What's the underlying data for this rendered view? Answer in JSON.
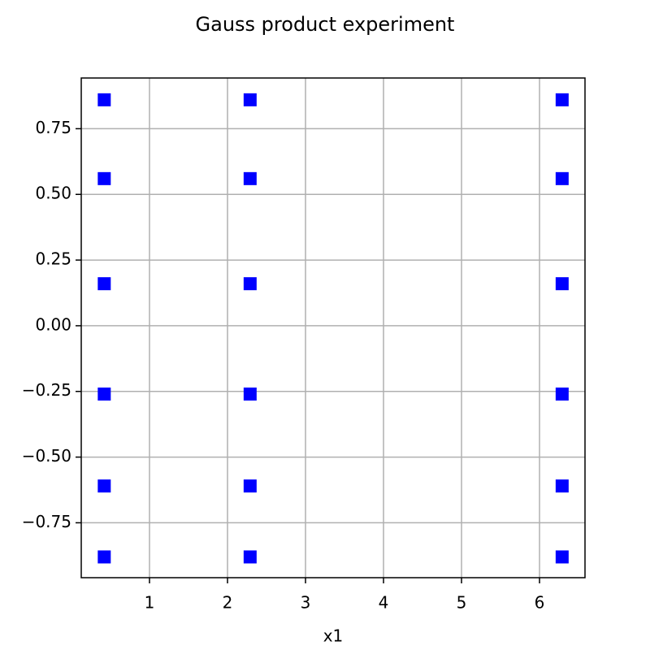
{
  "chart_data": {
    "type": "scatter",
    "title": "Gauss product experiment",
    "x_label": "x1",
    "series": [
      {
        "color": "#0000ff",
        "marker": "square",
        "x": [
          0.42,
          0.42,
          0.42,
          0.42,
          0.42,
          0.42,
          2.29,
          2.29,
          2.29,
          2.29,
          2.29,
          2.29,
          6.29,
          6.29,
          6.29,
          6.29,
          6.29,
          6.29
        ],
        "values": [
          0.86,
          0.56,
          0.16,
          -0.26,
          -0.61,
          -0.88,
          0.86,
          0.56,
          0.16,
          -0.26,
          -0.61,
          -0.88,
          0.86,
          0.56,
          0.16,
          -0.26,
          -0.61,
          -0.88
        ]
      }
    ],
    "xlim": [
      0.125,
      6.583
    ],
    "ylim": [
      -0.959,
      0.943
    ],
    "xticks": [
      1,
      2,
      3,
      4,
      5,
      6
    ],
    "yticks": [
      {
        "value": -0.75,
        "label": "−0.75"
      },
      {
        "value": -0.5,
        "label": "−0.50"
      },
      {
        "value": -0.25,
        "label": "−0.25"
      },
      {
        "value": 0,
        "label": "0.00"
      },
      0.25,
      {
        "value": 0.5,
        "label": "0.50"
      },
      0.75
    ],
    "grid": true
  }
}
